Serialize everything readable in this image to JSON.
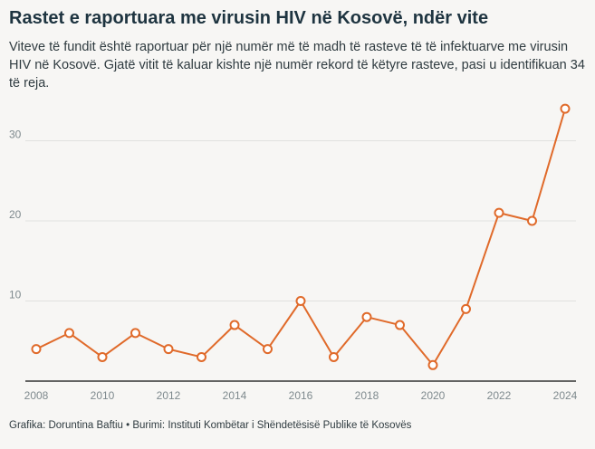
{
  "header": {
    "title": "Rastet e raportuara me virusin HIV në Kosovë, ndër vite",
    "subtitle": "Viteve të fundit është raportuar për një numër më të madh të rasteve të të infektuarve me virusin HIV në Kosovë. Gjatë vitit të kaluar kishte një numër rekord të këtyre rasteve, pasi u identifikuan 34 të reja."
  },
  "footer": {
    "credit": "Grafika: Doruntina Baftiu • Burimi: Instituti Kombëtar i Shëndetësisë Publike të Kosovës"
  },
  "colors": {
    "line": "#e06a2a",
    "background": "#f7f6f4"
  },
  "chart_data": {
    "type": "line",
    "title": "Rastet e raportuara me virusin HIV në Kosovë, ndër vite",
    "x": [
      2008,
      2009,
      2010,
      2011,
      2012,
      2013,
      2014,
      2015,
      2016,
      2017,
      2018,
      2019,
      2020,
      2021,
      2022,
      2023,
      2024
    ],
    "y": [
      4,
      6,
      3,
      6,
      4,
      3,
      7,
      4,
      10,
      3,
      8,
      7,
      2,
      9,
      21,
      20,
      34
    ],
    "xlim": [
      2008,
      2024
    ],
    "ylim": [
      0,
      35
    ],
    "x_ticks": [
      "2008",
      "2010",
      "2012",
      "2014",
      "2016",
      "2018",
      "2020",
      "2022",
      "2024"
    ],
    "y_ticks": [
      "10",
      "20",
      "30"
    ],
    "grid": true,
    "legend": "none"
  }
}
